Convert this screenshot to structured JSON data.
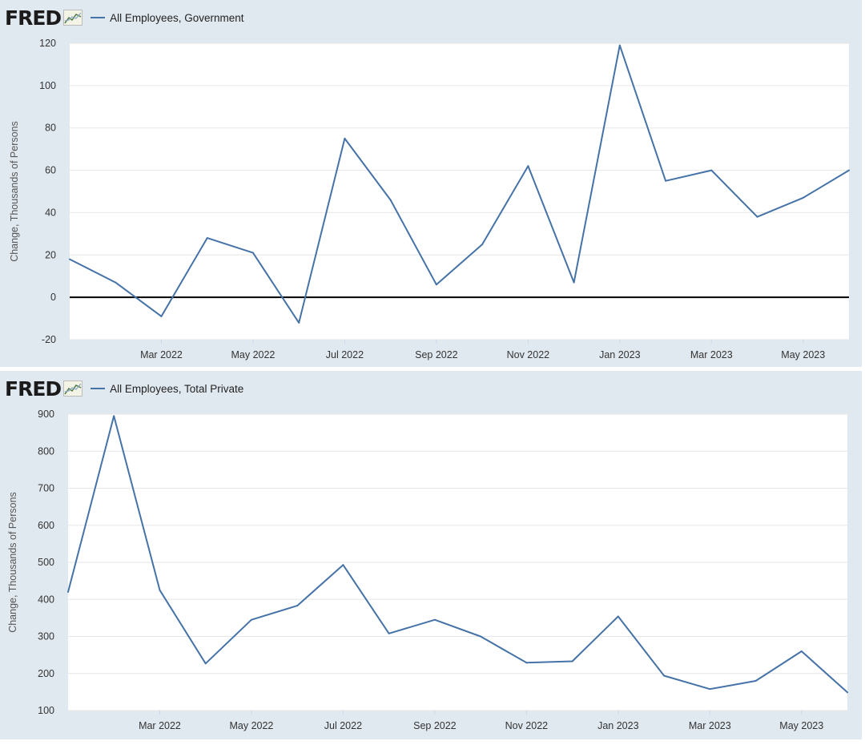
{
  "logo_text": "FRED",
  "chart_data": [
    {
      "type": "line",
      "title": "",
      "legend": "All Employees, Government",
      "ylabel": "Change, Thousands of Persons",
      "xlabel": "",
      "ylim": [
        -20,
        120
      ],
      "yticks": [
        "120",
        "100",
        "80",
        "60",
        "40",
        "20",
        "0",
        "-20"
      ],
      "ytick_values": [
        120,
        100,
        80,
        60,
        40,
        20,
        0,
        -20
      ],
      "zero_line": true,
      "xlim": [
        "2022-01",
        "2023-06"
      ],
      "xtick_labels": [
        "Mar 2022",
        "May 2022",
        "Jul 2022",
        "Sep 2022",
        "Nov 2022",
        "Jan 2023",
        "Mar 2023",
        "May 2023"
      ],
      "xtick_values": [
        "2022-03",
        "2022-05",
        "2022-07",
        "2022-09",
        "2022-11",
        "2023-01",
        "2023-03",
        "2023-05"
      ],
      "series": [
        {
          "name": "All Employees, Government",
          "color": "#4572a7",
          "x": [
            "2022-01",
            "2022-02",
            "2022-03",
            "2022-04",
            "2022-05",
            "2022-06",
            "2022-07",
            "2022-08",
            "2022-09",
            "2022-10",
            "2022-11",
            "2022-12",
            "2023-01",
            "2023-02",
            "2023-03",
            "2023-04",
            "2023-05",
            "2023-06"
          ],
          "values": [
            18,
            7,
            -9,
            28,
            21,
            -12,
            75,
            46,
            6,
            25,
            62,
            7,
            119,
            55,
            60,
            38,
            47,
            60
          ]
        }
      ],
      "grid": true
    },
    {
      "type": "line",
      "title": "",
      "legend": "All Employees, Total Private",
      "ylabel": "Change, Thousands of Persons",
      "xlabel": "",
      "ylim": [
        100,
        900
      ],
      "yticks": [
        "900",
        "800",
        "700",
        "600",
        "500",
        "400",
        "300",
        "200",
        "100"
      ],
      "ytick_values": [
        900,
        800,
        700,
        600,
        500,
        400,
        300,
        200,
        100
      ],
      "zero_line": false,
      "xlim": [
        "2022-01",
        "2023-06"
      ],
      "xtick_labels": [
        "Mar 2022",
        "May 2022",
        "Jul 2022",
        "Sep 2022",
        "Nov 2022",
        "Jan 2023",
        "Mar 2023",
        "May 2023"
      ],
      "xtick_values": [
        "2022-03",
        "2022-05",
        "2022-07",
        "2022-09",
        "2022-11",
        "2023-01",
        "2023-03",
        "2023-05"
      ],
      "series": [
        {
          "name": "All Employees, Total Private",
          "color": "#4572a7",
          "x": [
            "2022-01",
            "2022-02",
            "2022-03",
            "2022-04",
            "2022-05",
            "2022-06",
            "2022-07",
            "2022-08",
            "2022-09",
            "2022-10",
            "2022-11",
            "2022-12",
            "2023-01",
            "2023-02",
            "2023-03",
            "2023-04",
            "2023-05",
            "2023-06"
          ],
          "values": [
            420,
            895,
            425,
            227,
            345,
            383,
            493,
            308,
            345,
            300,
            229,
            233,
            354,
            194,
            158,
            180,
            260,
            149
          ]
        }
      ],
      "grid": true
    }
  ]
}
